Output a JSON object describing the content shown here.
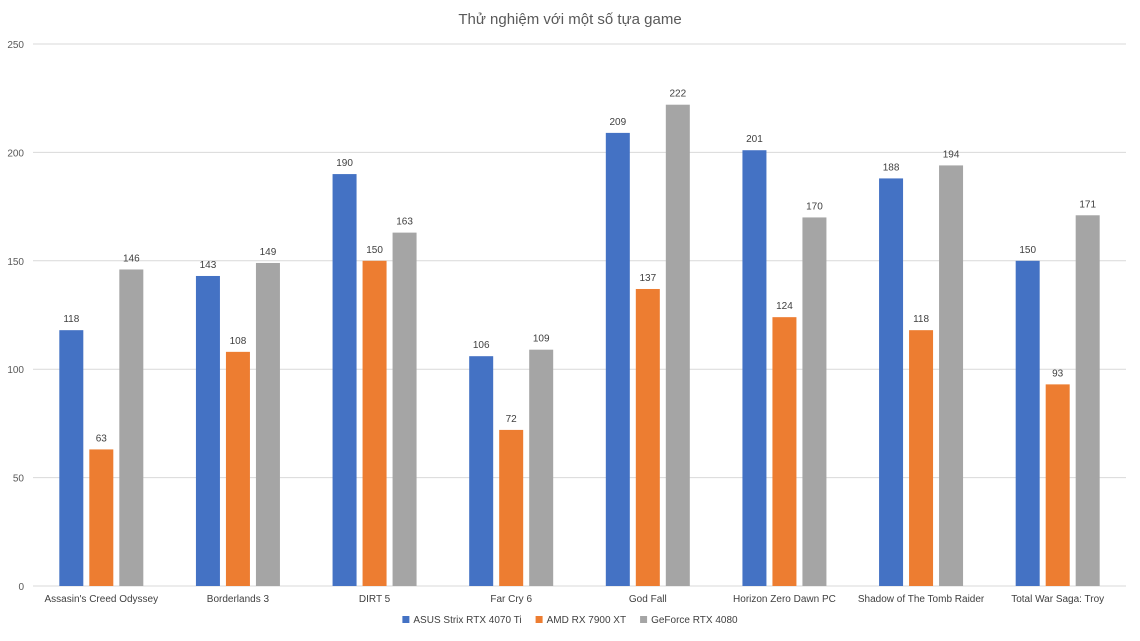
{
  "chart_data": {
    "type": "bar",
    "title": "Thử nghiệm với một số tựa game",
    "categories": [
      "Assasin's Creed Odyssey",
      "Borderlands 3",
      "DIRT 5",
      "Far Cry 6",
      "God Fall",
      "Horizon Zero Dawn PC",
      "Shadow of The Tomb Raider",
      "Total War Saga: Troy"
    ],
    "series": [
      {
        "name": "ASUS Strix RTX 4070 Ti",
        "color": "#4472c4",
        "values": [
          118,
          143,
          190,
          106,
          209,
          201,
          188,
          150
        ]
      },
      {
        "name": "AMD RX 7900 XT",
        "color": "#ed7d31",
        "values": [
          63,
          108,
          150,
          72,
          137,
          124,
          118,
          93
        ]
      },
      {
        "name": "GeForce RTX 4080",
        "color": "#a5a5a5",
        "values": [
          146,
          149,
          163,
          109,
          222,
          170,
          194,
          171
        ]
      }
    ],
    "ylim": [
      0,
      250
    ],
    "yticks": [
      0,
      50,
      100,
      150,
      200,
      250
    ],
    "xlabel": "",
    "ylabel": "",
    "grid": true,
    "legend_position": "bottom"
  }
}
